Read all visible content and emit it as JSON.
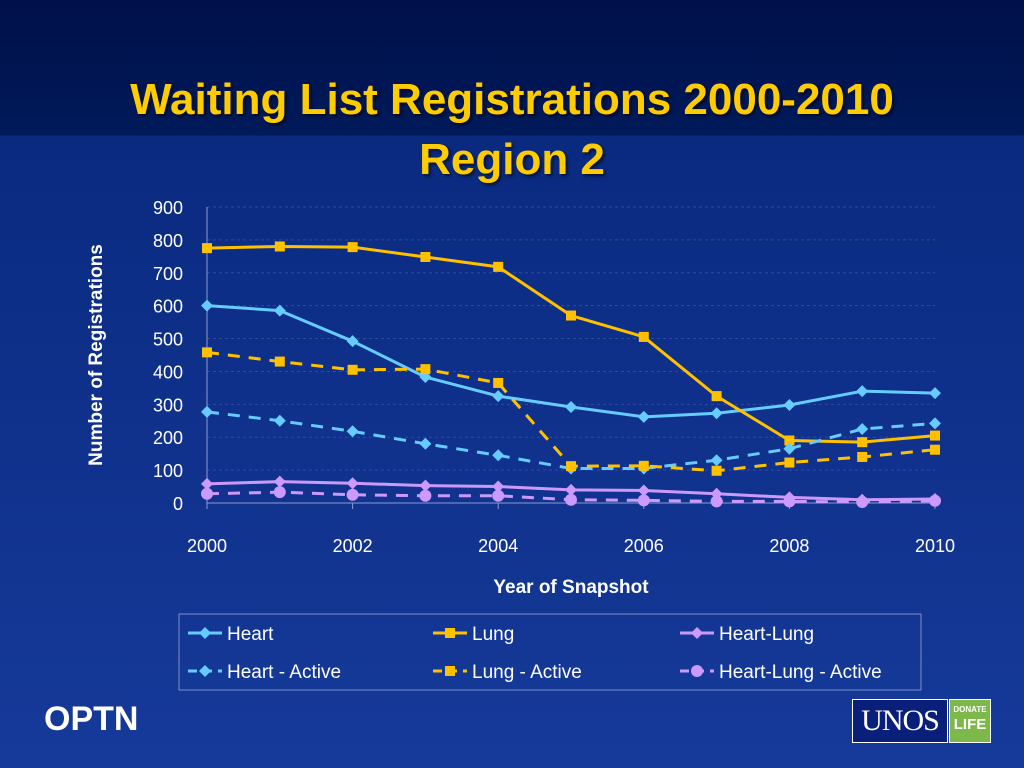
{
  "slide": {
    "title_line1": "Waiting List Registrations 2000-2010",
    "title_line2": "Region 2",
    "footer_left": "OPTN",
    "logo_main": "UNOS",
    "logo_badge_line1": "DONATE",
    "logo_badge_line2": "LIFE"
  },
  "colors": {
    "title": "#ffcc00",
    "heart": "#66ccff",
    "lung": "#ffc000",
    "heart_lung": "#cc99ff"
  },
  "chart_data": {
    "type": "line",
    "title": "",
    "xlabel": "Year of Snapshot",
    "ylabel": "Number of Registrations",
    "x": [
      2000,
      2001,
      2002,
      2003,
      2004,
      2005,
      2006,
      2007,
      2008,
      2009,
      2010
    ],
    "x_ticks": [
      "2000",
      "2002",
      "2004",
      "2006",
      "2008",
      "2010"
    ],
    "y_ticks": [
      "0",
      "100",
      "200",
      "300",
      "400",
      "500",
      "600",
      "700",
      "800",
      "900"
    ],
    "ylim": [
      0,
      900
    ],
    "xlim": [
      2000,
      2010
    ],
    "grid": "horizontal dashed",
    "legend_position": "bottom",
    "series": [
      {
        "name": "Heart",
        "color": "#66ccff",
        "dash": "solid",
        "marker": "diamond",
        "values": [
          600,
          585,
          492,
          383,
          325,
          292,
          262,
          273,
          298,
          340,
          334
        ]
      },
      {
        "name": "Lung",
        "color": "#ffc000",
        "dash": "solid",
        "marker": "square",
        "values": [
          775,
          780,
          778,
          748,
          718,
          570,
          505,
          325,
          190,
          185,
          205
        ]
      },
      {
        "name": "Heart-Lung",
        "color": "#cc99ff",
        "dash": "solid",
        "marker": "diamond",
        "values": [
          58,
          65,
          60,
          53,
          50,
          40,
          38,
          28,
          17,
          10,
          12
        ]
      },
      {
        "name": "Heart - Active",
        "color": "#66ccff",
        "dash": "dashed",
        "marker": "diamond",
        "values": [
          277,
          250,
          218,
          180,
          145,
          105,
          105,
          130,
          165,
          225,
          242
        ]
      },
      {
        "name": "Lung - Active",
        "color": "#ffc000",
        "dash": "dashed",
        "marker": "square",
        "values": [
          458,
          430,
          405,
          407,
          365,
          112,
          113,
          98,
          123,
          140,
          162
        ]
      },
      {
        "name": "Heart-Lung - Active",
        "color": "#cc99ff",
        "dash": "dashed",
        "marker": "circle",
        "values": [
          28,
          33,
          25,
          22,
          22,
          10,
          8,
          5,
          5,
          3,
          7
        ]
      }
    ]
  }
}
